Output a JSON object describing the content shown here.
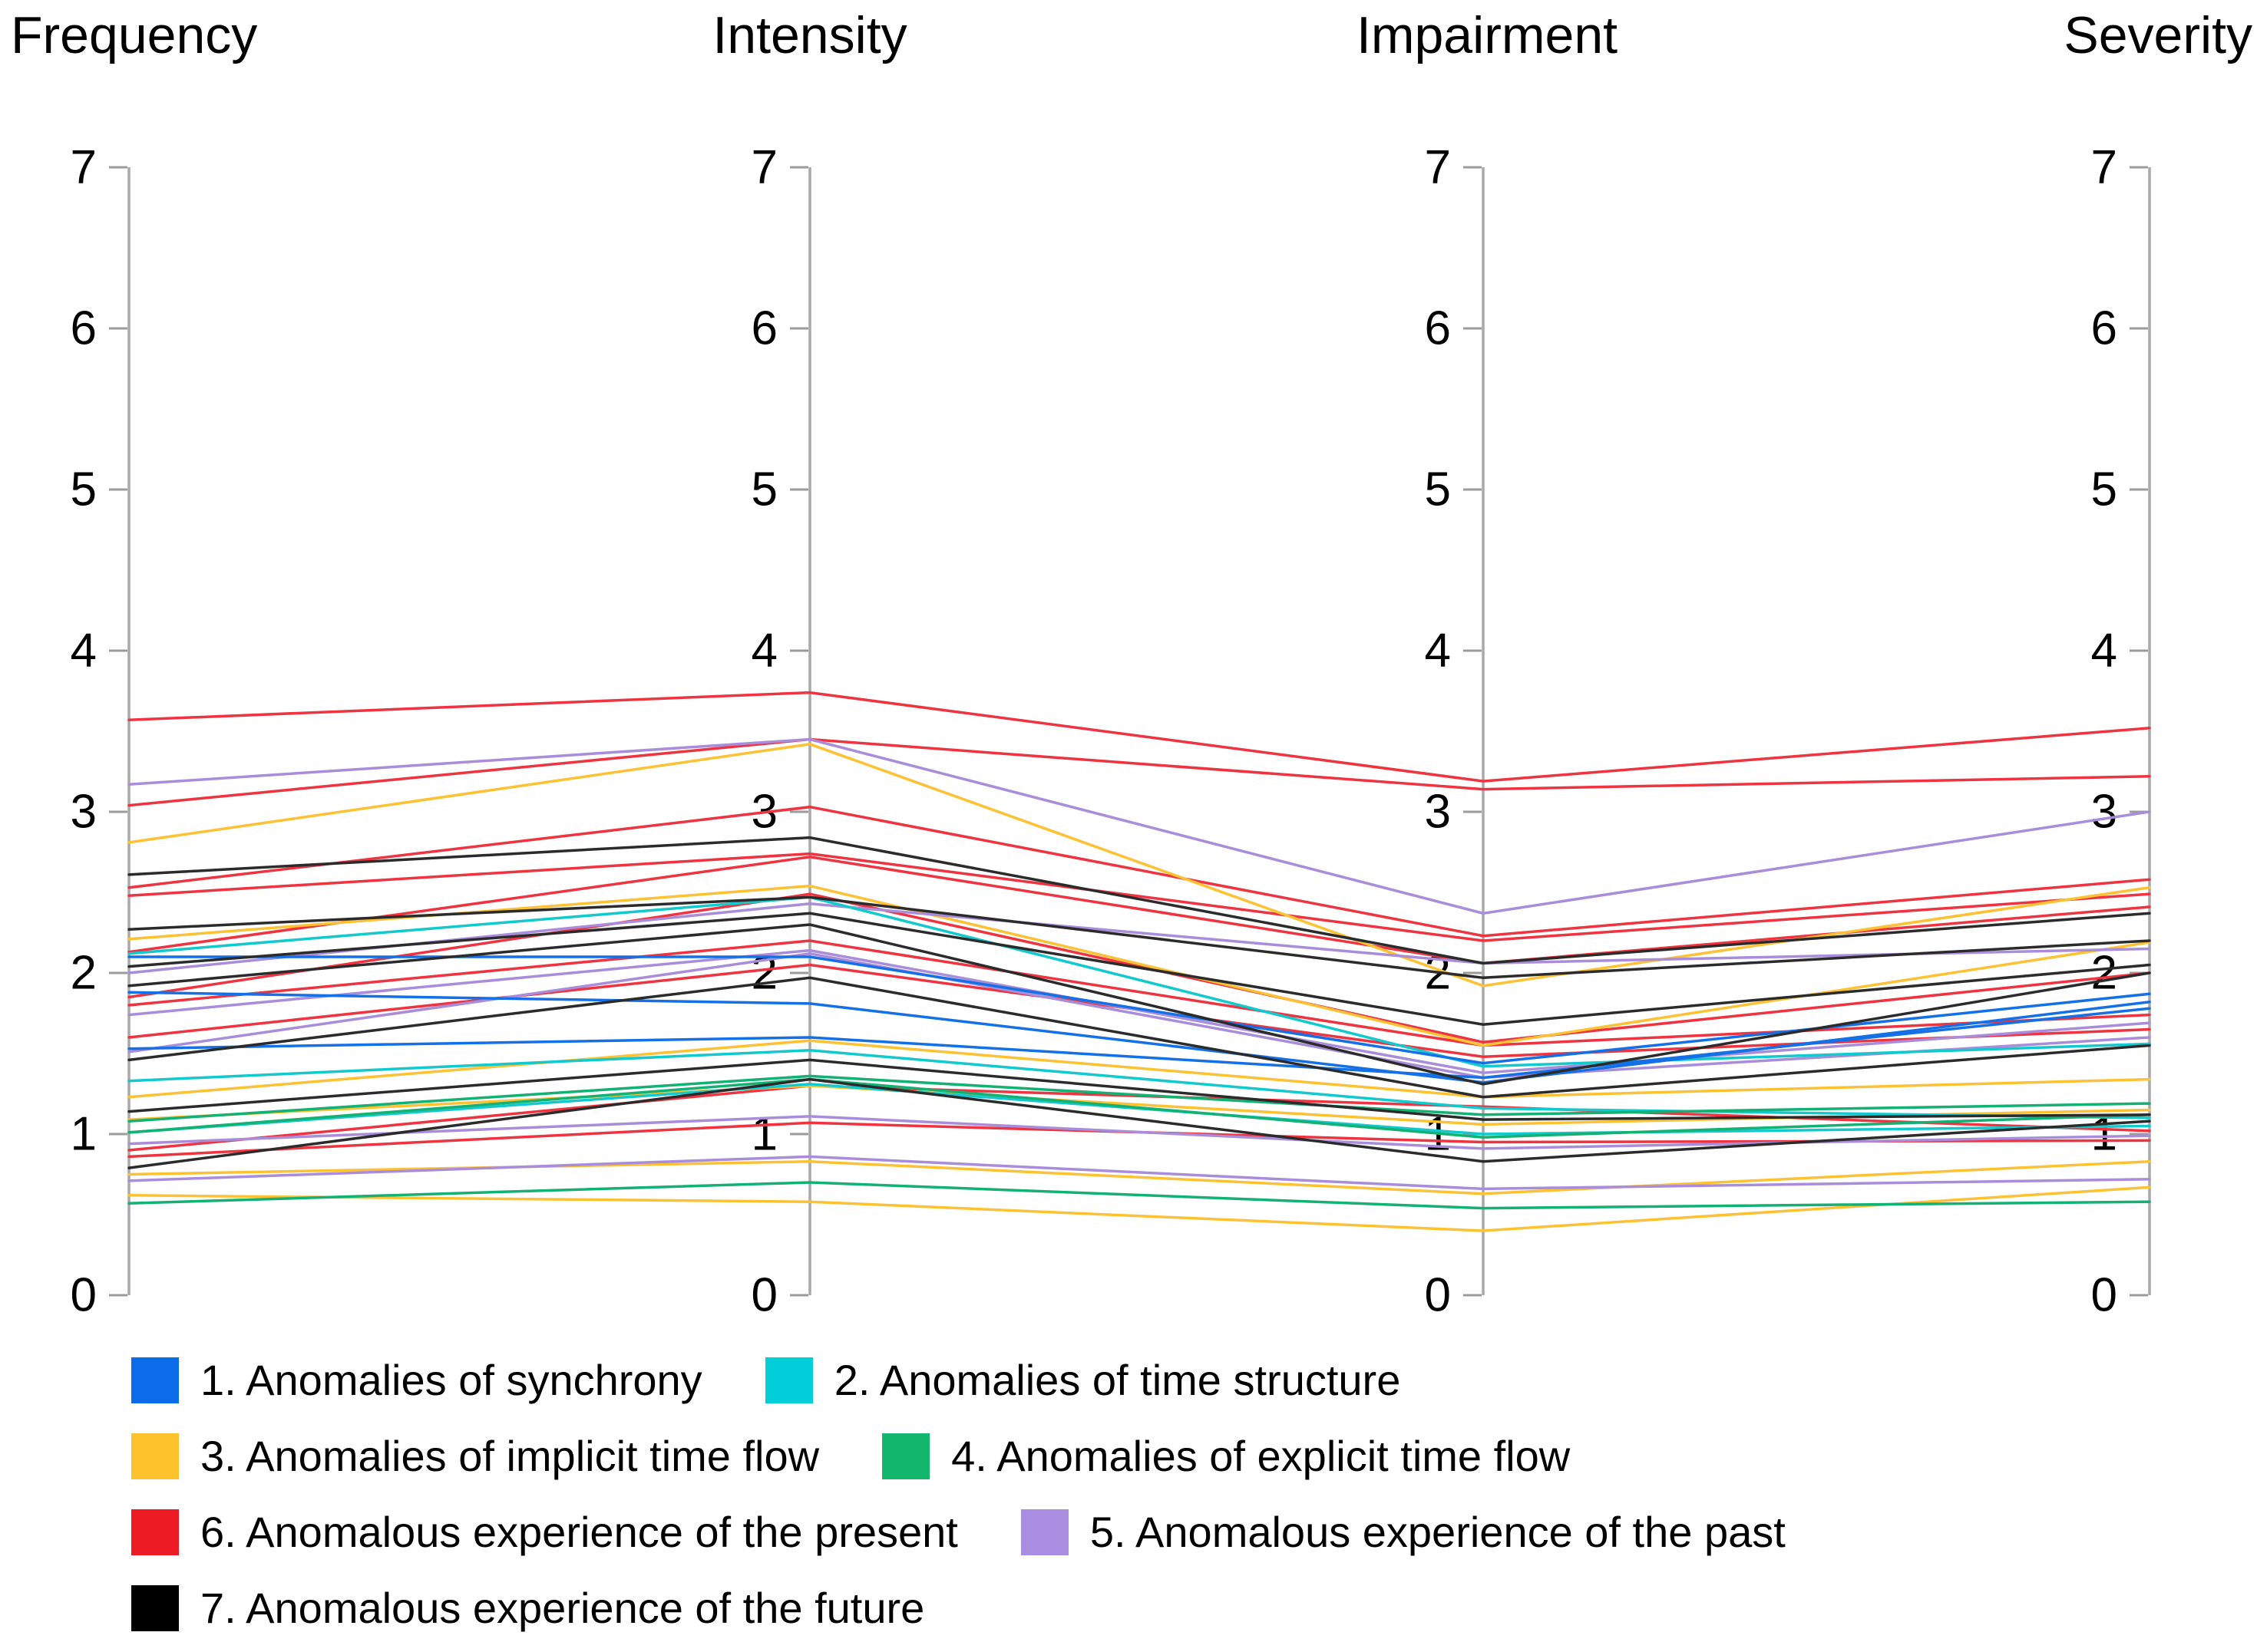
{
  "figure": {
    "headers": [
      "Frequency",
      "Intensity",
      "Impairment",
      "Severity"
    ]
  },
  "chart_data": {
    "type": "line",
    "subtype": "parallel-coordinates",
    "title": "",
    "axes": [
      "Frequency",
      "Intensity",
      "Impairment",
      "Severity"
    ],
    "ylim": [
      0,
      7
    ],
    "yticks": [
      0,
      1,
      2,
      3,
      4,
      5,
      6,
      7
    ],
    "grid": false,
    "legend_position": "bottom",
    "axis_line_color": "#a9a9a9",
    "tick_color": "#9b9b9b",
    "colors": {
      "1": "#1470e6",
      "2": "#12c9ce",
      "3": "#fcc233",
      "4": "#13b173",
      "5": "#a98ddb",
      "6": "#ee3440",
      "7": "#2b2b2b"
    },
    "series": [
      {
        "category": 6,
        "values": [
          3.57,
          3.74,
          3.19,
          3.52
        ]
      },
      {
        "category": 6,
        "values": [
          3.04,
          3.45,
          3.14,
          3.22
        ]
      },
      {
        "category": 6,
        "values": [
          2.53,
          3.03,
          2.23,
          2.58
        ]
      },
      {
        "category": 6,
        "values": [
          2.48,
          2.74,
          2.2,
          2.49
        ]
      },
      {
        "category": 6,
        "values": [
          2.13,
          2.72,
          2.06,
          2.41
        ]
      },
      {
        "category": 6,
        "values": [
          1.85,
          2.49,
          1.57,
          2.0
        ]
      },
      {
        "category": 6,
        "values": [
          1.8,
          2.2,
          1.55,
          1.74
        ]
      },
      {
        "category": 6,
        "values": [
          1.6,
          2.05,
          1.48,
          1.65
        ]
      },
      {
        "category": 6,
        "values": [
          0.9,
          1.3,
          1.17,
          1.02
        ]
      },
      {
        "category": 6,
        "values": [
          0.86,
          1.07,
          0.95,
          0.96
        ]
      },
      {
        "category": 3,
        "values": [
          2.81,
          3.42,
          1.92,
          2.53
        ]
      },
      {
        "category": 3,
        "values": [
          2.21,
          2.54,
          1.55,
          2.19
        ]
      },
      {
        "category": 3,
        "values": [
          1.23,
          1.58,
          1.23,
          1.34
        ]
      },
      {
        "category": 3,
        "values": [
          1.09,
          1.3,
          1.06,
          1.15
        ]
      },
      {
        "category": 3,
        "values": [
          0.75,
          0.83,
          0.63,
          0.83
        ]
      },
      {
        "category": 3,
        "values": [
          0.62,
          0.58,
          0.4,
          0.67
        ]
      },
      {
        "category": 5,
        "values": [
          3.17,
          3.45,
          2.37,
          3.0
        ]
      },
      {
        "category": 5,
        "values": [
          2.0,
          2.43,
          2.06,
          2.15
        ]
      },
      {
        "category": 5,
        "values": [
          1.74,
          2.14,
          1.38,
          1.69
        ]
      },
      {
        "category": 5,
        "values": [
          1.51,
          2.12,
          1.35,
          1.6
        ]
      },
      {
        "category": 5,
        "values": [
          0.94,
          1.11,
          0.91,
          0.99
        ]
      },
      {
        "category": 5,
        "values": [
          0.71,
          0.86,
          0.66,
          0.72
        ]
      },
      {
        "category": 2,
        "values": [
          2.12,
          2.47,
          1.42,
          1.56
        ]
      },
      {
        "category": 2,
        "values": [
          1.33,
          1.52,
          1.16,
          1.1
        ]
      },
      {
        "category": 2,
        "values": [
          1.01,
          1.31,
          1.0,
          1.05
        ]
      },
      {
        "category": 1,
        "values": [
          2.1,
          2.1,
          1.44,
          1.87
        ]
      },
      {
        "category": 1,
        "values": [
          1.88,
          1.81,
          1.32,
          1.82
        ]
      },
      {
        "category": 1,
        "values": [
          1.53,
          1.6,
          1.35,
          1.78
        ]
      },
      {
        "category": 4,
        "values": [
          1.08,
          1.36,
          1.12,
          1.19
        ]
      },
      {
        "category": 4,
        "values": [
          1.01,
          1.34,
          0.98,
          1.12
        ]
      },
      {
        "category": 4,
        "values": [
          0.57,
          0.7,
          0.54,
          0.58
        ]
      },
      {
        "category": 7,
        "values": [
          2.61,
          2.84,
          2.06,
          2.37
        ]
      },
      {
        "category": 7,
        "values": [
          2.27,
          2.47,
          1.97,
          2.2
        ]
      },
      {
        "category": 7,
        "values": [
          2.04,
          2.37,
          1.68,
          2.05
        ]
      },
      {
        "category": 7,
        "values": [
          1.92,
          2.3,
          1.31,
          2.0
        ]
      },
      {
        "category": 7,
        "values": [
          1.46,
          1.97,
          1.23,
          1.55
        ]
      },
      {
        "category": 7,
        "values": [
          1.14,
          1.46,
          1.09,
          1.12
        ]
      },
      {
        "category": 7,
        "values": [
          0.79,
          1.34,
          0.83,
          1.08
        ]
      }
    ]
  },
  "legend": {
    "items": [
      {
        "label": "1. Anomalies of synchrony",
        "color": "#0a6ce8"
      },
      {
        "label": "2. Anomalies of time structure",
        "color": "#00ced8"
      },
      {
        "label": "3. Anomalies of implicit time flow",
        "color": "#fdc22c"
      },
      {
        "label": "4. Anomalies of explicit time flow",
        "color": "#12b76d"
      },
      {
        "label": "6. Anomalous experience of the present",
        "color": "#ed1c24"
      },
      {
        "label": "5. Anomalous experience of the past",
        "color": "#a98de0"
      },
      {
        "label": "7. Anomalous experience of the future",
        "color": "#000000"
      }
    ]
  }
}
